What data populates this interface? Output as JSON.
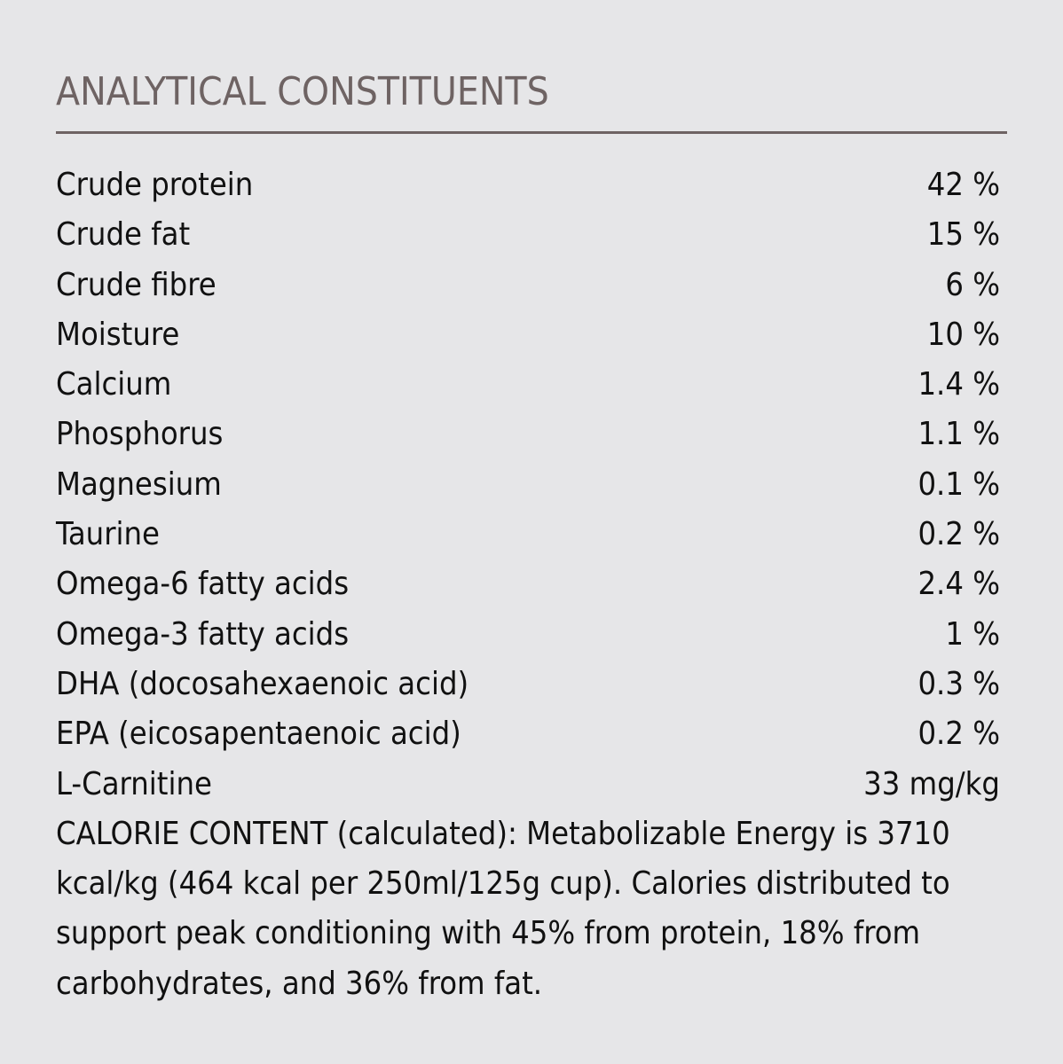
{
  "header": {
    "title": "ANALYTICAL CONSTITUENTS"
  },
  "table": {
    "rows": [
      [
        "Crude protein",
        "42 %"
      ],
      [
        "Crude fat",
        "15 %"
      ],
      [
        "Crude fibre",
        "6 %"
      ],
      [
        "Moisture",
        "10 %"
      ],
      [
        "Calcium",
        "1.4 %"
      ],
      [
        "Phosphorus",
        "1.1 %"
      ],
      [
        "Magnesium",
        "0.1 %"
      ],
      [
        "Taurine",
        "0.2 %"
      ],
      [
        "Omega-6 fatty acids",
        "2.4 %"
      ],
      [
        "Omega-3 fatty acids",
        "1 %"
      ],
      [
        "DHA (docosahexaenoic acid)",
        "0.3 %"
      ],
      [
        "EPA (eicosapentaenoic acid)",
        "0.2 %"
      ],
      [
        "L-Carnitine",
        "33 mg/kg"
      ]
    ]
  },
  "note": "CALORIE CONTENT (calculated): Metabolizable Energy is 3710 kcal/kg (464 kcal per 250ml/125g cup). Calories distributed to support peak conditioning with 45% from protein, 18% from carbohydrates, and 36% from fat."
}
